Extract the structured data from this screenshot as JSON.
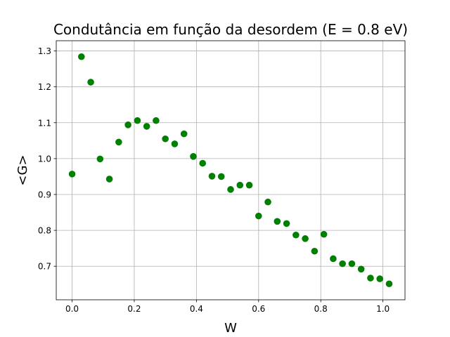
{
  "chart_data": {
    "type": "scatter",
    "title": "Condutância em função da desordem (E = 0.8 eV)",
    "xlabel": "W",
    "ylabel": "<G>",
    "xlim": [
      -0.051,
      1.071
    ],
    "ylim": [
      0.6065,
      1.3285
    ],
    "xticks": [
      0.0,
      0.2,
      0.4,
      0.6,
      0.8,
      1.0
    ],
    "xtick_labels": [
      "0.0",
      "0.2",
      "0.4",
      "0.6",
      "0.8",
      "1.0"
    ],
    "yticks": [
      0.7,
      0.8,
      0.9,
      1.0,
      1.1,
      1.2,
      1.3
    ],
    "ytick_labels": [
      "0.7",
      "0.8",
      "0.9",
      "1.0",
      "1.1",
      "1.2",
      "1.3"
    ],
    "grid": true,
    "marker_color": "#008000",
    "x": [
      0.0,
      0.03,
      0.06,
      0.09,
      0.12,
      0.15,
      0.18,
      0.21,
      0.24,
      0.27,
      0.3,
      0.33,
      0.36,
      0.39,
      0.42,
      0.45,
      0.48,
      0.51,
      0.54,
      0.57,
      0.6,
      0.63,
      0.66,
      0.69,
      0.72,
      0.75,
      0.78,
      0.81,
      0.84,
      0.87,
      0.9,
      0.93,
      0.96,
      0.99,
      1.02
    ],
    "y": [
      0.957,
      1.284,
      1.213,
      0.999,
      0.943,
      1.046,
      1.094,
      1.106,
      1.09,
      1.106,
      1.055,
      1.041,
      1.069,
      1.006,
      0.987,
      0.951,
      0.95,
      0.914,
      0.926,
      0.926,
      0.84,
      0.879,
      0.825,
      0.819,
      0.787,
      0.777,
      0.742,
      0.789,
      0.721,
      0.707,
      0.707,
      0.692,
      0.667,
      0.665,
      0.651
    ]
  }
}
